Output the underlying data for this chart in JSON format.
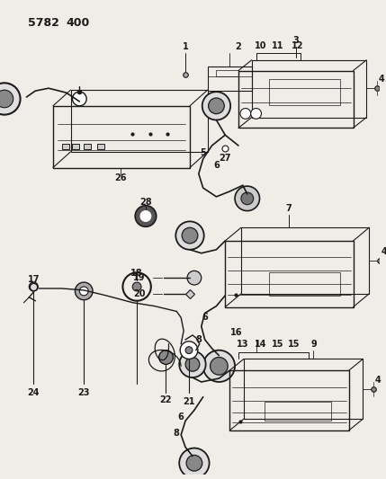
{
  "bg_color": "#f5f5f0",
  "line_color": "#1a1a1a",
  "text_color": "#1a1a1a",
  "fig_width": 4.29,
  "fig_height": 5.33,
  "dpi": 100,
  "header": "5782  400"
}
